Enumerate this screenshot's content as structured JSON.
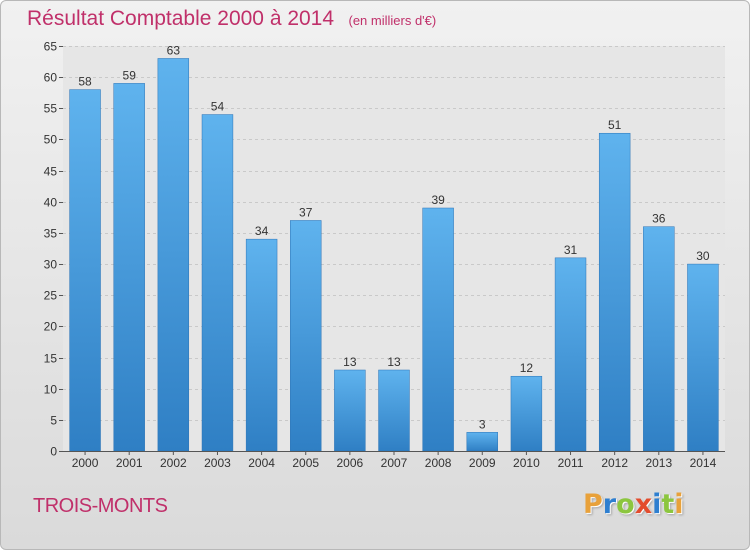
{
  "chart_data": {
    "type": "bar",
    "title": "Résultat Comptable 2000 à 2014",
    "subtitle": "(en milliers d'€)",
    "xlabel": "",
    "ylabel": "",
    "categories": [
      "2000",
      "2001",
      "2002",
      "2003",
      "2004",
      "2005",
      "2006",
      "2007",
      "2008",
      "2009",
      "2010",
      "2011",
      "2012",
      "2013",
      "2014"
    ],
    "values": [
      58,
      59,
      63,
      54,
      34,
      37,
      13,
      13,
      39,
      3,
      12,
      31,
      51,
      36,
      30
    ],
    "ylim": [
      0,
      65
    ],
    "yticks": [
      0,
      5,
      10,
      15,
      20,
      25,
      30,
      35,
      40,
      45,
      50,
      55,
      60,
      65
    ],
    "grid": true,
    "bar_color": "#3a8fd6",
    "title_color": "#c0306a"
  },
  "commune": "TROIS-MONTS",
  "logo": {
    "text": "Proxiti",
    "letter_colors": [
      "#e8a13a",
      "#2e7fd0",
      "#8cc63f",
      "#e34c2d",
      "#2e7fd0",
      "#8cc63f",
      "#e8a13a"
    ]
  }
}
